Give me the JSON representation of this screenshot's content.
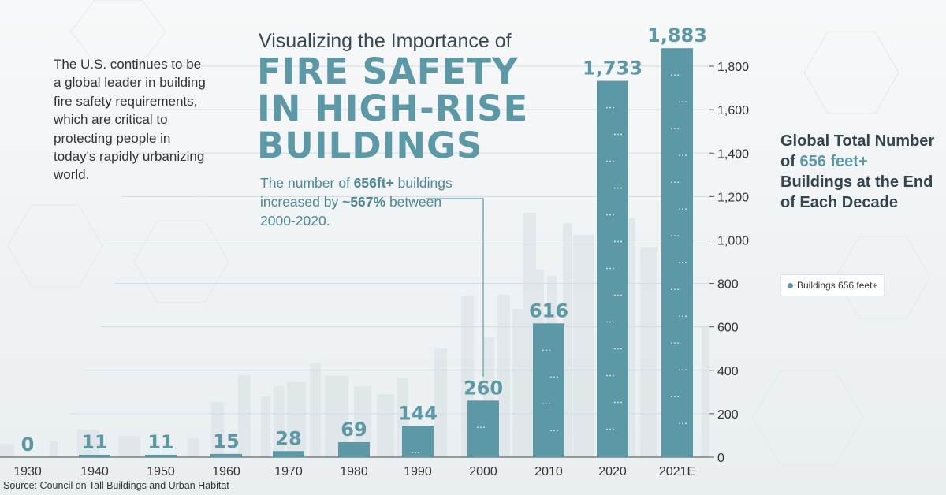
{
  "intro_text": "The U.S. continues to be a global leader in building fire safety requirements, which are critical to protecting people in today's rapidly urbanizing world.",
  "subtitle": "Visualizing the Importance of",
  "title_lines": [
    "FIRE SAFETY",
    "IN HIGH-RISE",
    "BUILDINGS"
  ],
  "callout": {
    "pre": "The number of ",
    "bold1": "656ft+",
    "mid": " buildings increased by ",
    "bold2": "~567%",
    "post": " between 2000-2020."
  },
  "side_title": {
    "line1": "Global Total Number of",
    "highlight": "656 feet+",
    "line2": "Buildings at the End of Each Decade"
  },
  "source": "Source:  Council on Tall Buildings and Urban Habitat",
  "colors": {
    "bar": "#5c98a6",
    "value_label": "#5c98a6",
    "text": "#333333"
  },
  "chart_data": {
    "type": "bar",
    "categories": [
      "1930",
      "1940",
      "1950",
      "1960",
      "1970",
      "1980",
      "1990",
      "2000",
      "2010",
      "2020",
      "2021E"
    ],
    "series": [
      {
        "name": "Buildings 656 feet+",
        "values": [
          0,
          11,
          11,
          15,
          28,
          69,
          144,
          260,
          616,
          1733,
          1883
        ]
      }
    ],
    "data_labels": [
      "0",
      "11",
      "11",
      "15",
      "28",
      "69",
      "144",
      "260",
      "616",
      "1,733",
      "1,883"
    ],
    "yticks": [
      "0",
      "200",
      "400",
      "600",
      "800",
      "1,000",
      "1,200",
      "1,400",
      "1,600",
      "1,800"
    ],
    "ylim": [
      0,
      1880
    ],
    "y_axis_side": "right",
    "legend": "right",
    "annotation": {
      "from_category": "2000"
    }
  }
}
